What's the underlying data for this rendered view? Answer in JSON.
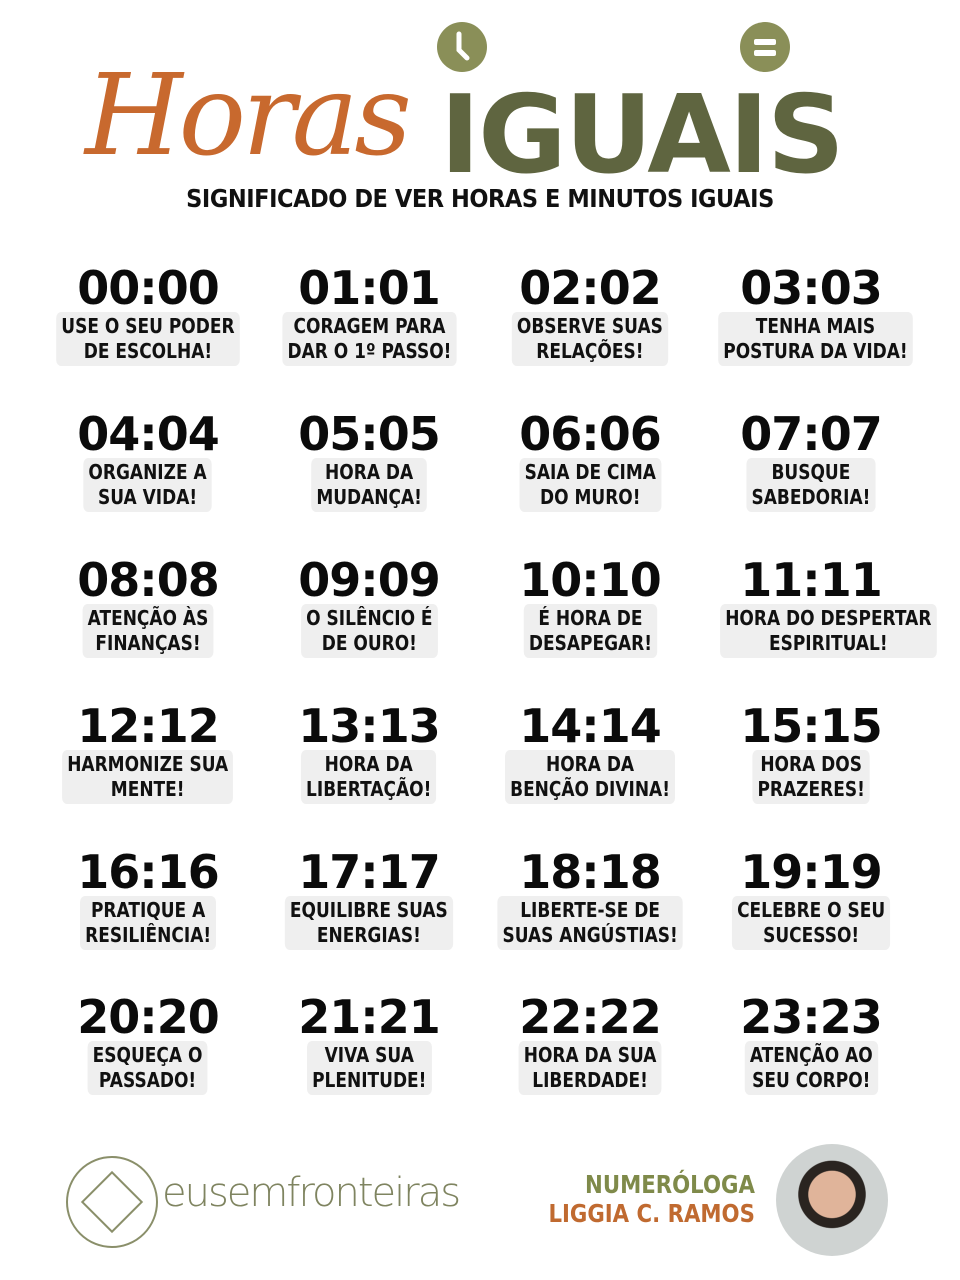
{
  "header": {
    "title_script": "Horas",
    "title_bold": "IGUAIS",
    "subtitle": "SIGNIFICADO DE VER HORAS E MINUTOS IGUAIS",
    "icons": [
      "clock-icon",
      "equals-icon"
    ]
  },
  "colors": {
    "orange": "#c8692e",
    "olive": "#5f6540",
    "olive_light": "#8a8f58",
    "message_bg": "#efefef"
  },
  "hours": [
    {
      "time": "00:00",
      "lines": [
        "USE O SEU PODER",
        "DE ESCOLHA!"
      ]
    },
    {
      "time": "01:01",
      "lines": [
        "CORAGEM PARA",
        "DAR O 1º PASSO!"
      ]
    },
    {
      "time": "02:02",
      "lines": [
        "OBSERVE SUAS",
        "RELAÇÕES!"
      ]
    },
    {
      "time": "03:03",
      "lines": [
        "TENHA MAIS",
        "POSTURA DA VIDA!"
      ]
    },
    {
      "time": "04:04",
      "lines": [
        "ORGANIZE A",
        "SUA VIDA!"
      ]
    },
    {
      "time": "05:05",
      "lines": [
        "HORA DA",
        "MUDANÇA!"
      ]
    },
    {
      "time": "06:06",
      "lines": [
        "SAIA DE CIMA",
        "DO MURO!"
      ]
    },
    {
      "time": "07:07",
      "lines": [
        "BUSQUE",
        "SABEDORIA!"
      ]
    },
    {
      "time": "08:08",
      "lines": [
        "ATENÇÃO ÀS",
        "FINANÇAS!"
      ]
    },
    {
      "time": "09:09",
      "lines": [
        "O SILÊNCIO É",
        "DE OURO!"
      ]
    },
    {
      "time": "10:10",
      "lines": [
        "É HORA DE",
        "DESAPEGAR!"
      ]
    },
    {
      "time": "11:11",
      "lines": [
        "HORA DO DESPERTAR",
        "ESPIRITUAL!"
      ]
    },
    {
      "time": "12:12",
      "lines": [
        "HARMONIZE SUA",
        "MENTE!"
      ]
    },
    {
      "time": "13:13",
      "lines": [
        "HORA DA",
        "LIBERTAÇÃO!"
      ]
    },
    {
      "time": "14:14",
      "lines": [
        "HORA DA",
        "BENÇÃO DIVINA!"
      ]
    },
    {
      "time": "15:15",
      "lines": [
        "HORA DOS",
        "PRAZERES!"
      ]
    },
    {
      "time": "16:16",
      "lines": [
        "PRATIQUE A",
        "RESILIÊNCIA!"
      ]
    },
    {
      "time": "17:17",
      "lines": [
        "EQUILIBRE SUAS",
        "ENERGIAS!"
      ]
    },
    {
      "time": "18:18",
      "lines": [
        "LIBERTE-SE DE",
        "SUAS ANGÚSTIAS!"
      ]
    },
    {
      "time": "19:19",
      "lines": [
        "CELEBRE O SEU",
        "SUCESSO!"
      ]
    },
    {
      "time": "20:20",
      "lines": [
        "ESQUEÇA O",
        "PASSADO!"
      ]
    },
    {
      "time": "21:21",
      "lines": [
        "VIVA SUA",
        "PLENITUDE!"
      ]
    },
    {
      "time": "22:22",
      "lines": [
        "HORA DA SUA",
        "LIBERDADE!"
      ]
    },
    {
      "time": "23:23",
      "lines": [
        "ATENÇÃO AO",
        "SEU CORPO!"
      ]
    }
  ],
  "footer": {
    "brand": "eusemfronteiras",
    "author_role": "NUMERÓLOGA",
    "author_name": "LIGGIA C. RAMOS"
  }
}
